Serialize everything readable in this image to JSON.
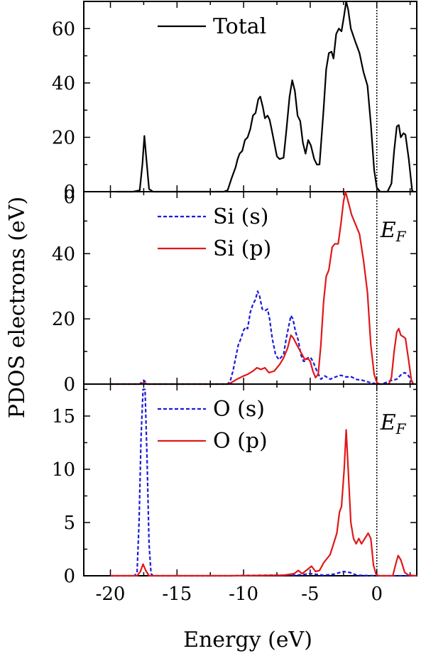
{
  "figure": {
    "ylabel": "PDOS electrons (eV)",
    "xlabel": "Energy (eV)",
    "fermi_label": "E",
    "fermi_sub": "F"
  },
  "chart_data": [
    {
      "type": "line",
      "panel": "top",
      "xlim": [
        -22,
        3
      ],
      "ylim": [
        0,
        70
      ],
      "xticks": [
        -20,
        -15,
        -10,
        -5,
        0
      ],
      "yticks": [
        0,
        20,
        40,
        60
      ],
      "yticklabels": [
        "0",
        "20",
        "40",
        "60"
      ],
      "fermi_level": 0,
      "show_fermi_label": false,
      "legend_placement": "top-left",
      "series": [
        {
          "name": "Total",
          "color": "#000000",
          "dash": "solid",
          "points": [
            [
              -19.6,
              0
            ],
            [
              -18.3,
              0
            ],
            [
              -17.8,
              0.5
            ],
            [
              -17.6,
              10
            ],
            [
              -17.45,
              20.5
            ],
            [
              -17.3,
              12
            ],
            [
              -17.1,
              1
            ],
            [
              -16.8,
              0
            ],
            [
              -11.5,
              0
            ],
            [
              -11.2,
              0.5
            ],
            [
              -10.9,
              5
            ],
            [
              -10.6,
              9
            ],
            [
              -10.45,
              12
            ],
            [
              -10.3,
              14
            ],
            [
              -10.1,
              15
            ],
            [
              -9.9,
              19
            ],
            [
              -9.7,
              20
            ],
            [
              -9.5,
              23
            ],
            [
              -9.3,
              28
            ],
            [
              -9.1,
              29
            ],
            [
              -8.9,
              34
            ],
            [
              -8.75,
              35
            ],
            [
              -8.55,
              31
            ],
            [
              -8.4,
              27
            ],
            [
              -8.2,
              28
            ],
            [
              -8.05,
              26.5
            ],
            [
              -7.9,
              23
            ],
            [
              -7.7,
              18
            ],
            [
              -7.5,
              13
            ],
            [
              -7.3,
              12
            ],
            [
              -7.0,
              12.5
            ],
            [
              -6.8,
              22
            ],
            [
              -6.55,
              35
            ],
            [
              -6.35,
              41
            ],
            [
              -6.15,
              37
            ],
            [
              -5.95,
              28
            ],
            [
              -5.75,
              26
            ],
            [
              -5.55,
              18
            ],
            [
              -5.35,
              14
            ],
            [
              -5.15,
              19
            ],
            [
              -4.95,
              17
            ],
            [
              -4.7,
              12
            ],
            [
              -4.5,
              10
            ],
            [
              -4.3,
              10
            ],
            [
              -4.0,
              30
            ],
            [
              -3.8,
              45
            ],
            [
              -3.6,
              51
            ],
            [
              -3.4,
              51.5
            ],
            [
              -3.25,
              49
            ],
            [
              -3.05,
              58
            ],
            [
              -2.85,
              60
            ],
            [
              -2.65,
              59
            ],
            [
              -2.45,
              65
            ],
            [
              -2.3,
              70
            ],
            [
              -2.15,
              67
            ],
            [
              -1.95,
              60
            ],
            [
              -1.6,
              55
            ],
            [
              -1.3,
              51
            ],
            [
              -1.0,
              44
            ],
            [
              -0.7,
              39
            ],
            [
              -0.45,
              25
            ],
            [
              -0.2,
              8
            ],
            [
              0.0,
              1.5
            ],
            [
              0.25,
              0
            ],
            [
              0.8,
              0
            ],
            [
              1.1,
              3
            ],
            [
              1.3,
              15
            ],
            [
              1.5,
              24
            ],
            [
              1.65,
              24.5
            ],
            [
              1.8,
              20
            ],
            [
              2.0,
              21.5
            ],
            [
              2.15,
              21
            ],
            [
              2.4,
              12
            ],
            [
              2.65,
              0.5
            ],
            [
              2.75,
              0
            ]
          ]
        }
      ]
    },
    {
      "type": "line",
      "panel": "middle",
      "xlim": [
        -22,
        3
      ],
      "ylim": [
        0,
        59
      ],
      "xticks": [
        -20,
        -15,
        -10,
        -5,
        0
      ],
      "yticks": [
        0,
        20,
        40
      ],
      "yticklabels": [
        "0",
        "20",
        "40"
      ],
      "extra_tick_label": {
        "y": 59,
        "text": "0"
      },
      "fermi_level": 0,
      "show_fermi_label": true,
      "legend_placement": "top-left",
      "series": [
        {
          "name": "Si (s)",
          "color": "#1a1adc",
          "dash": "dashed",
          "points": [
            [
              -20,
              0
            ],
            [
              -17.8,
              0
            ],
            [
              -17.5,
              1.2
            ],
            [
              -17.2,
              0
            ],
            [
              -11.2,
              0
            ],
            [
              -11.0,
              1
            ],
            [
              -10.8,
              4
            ],
            [
              -10.6,
              8
            ],
            [
              -10.4,
              12
            ],
            [
              -10.2,
              14
            ],
            [
              -10.0,
              16.5
            ],
            [
              -9.85,
              17.5
            ],
            [
              -9.7,
              17
            ],
            [
              -9.5,
              22
            ],
            [
              -9.3,
              24.5
            ],
            [
              -9.1,
              26
            ],
            [
              -8.95,
              28.5
            ],
            [
              -8.8,
              27
            ],
            [
              -8.6,
              23
            ],
            [
              -8.4,
              22.5
            ],
            [
              -8.2,
              23
            ],
            [
              -8.05,
              20
            ],
            [
              -7.85,
              14
            ],
            [
              -7.6,
              9
            ],
            [
              -7.35,
              7.5
            ],
            [
              -7.0,
              9
            ],
            [
              -6.8,
              14
            ],
            [
              -6.6,
              18
            ],
            [
              -6.45,
              21
            ],
            [
              -6.3,
              20
            ],
            [
              -6.1,
              16
            ],
            [
              -5.9,
              13.5
            ],
            [
              -5.7,
              9
            ],
            [
              -5.5,
              7
            ],
            [
              -5.35,
              7
            ],
            [
              -5.2,
              8
            ],
            [
              -5.0,
              8.3
            ],
            [
              -4.8,
              7
            ],
            [
              -4.5,
              4
            ],
            [
              -4.2,
              1.5
            ],
            [
              -3.9,
              2.5
            ],
            [
              -3.5,
              1.5
            ],
            [
              -3.1,
              2.2
            ],
            [
              -2.7,
              2.7
            ],
            [
              -2.3,
              2.2
            ],
            [
              -1.9,
              2.2
            ],
            [
              -1.5,
              1.4
            ],
            [
              -1.1,
              1.2
            ],
            [
              -0.7,
              0.7
            ],
            [
              -0.3,
              0.3
            ],
            [
              0.0,
              0
            ],
            [
              0.4,
              0
            ],
            [
              0.7,
              0.5
            ],
            [
              1.0,
              1
            ],
            [
              1.5,
              1.5
            ],
            [
              1.9,
              3.2
            ],
            [
              2.1,
              3.5
            ],
            [
              2.3,
              3
            ],
            [
              2.55,
              1.5
            ],
            [
              2.75,
              0
            ]
          ]
        },
        {
          "name": "Si (p)",
          "color": "#e01818",
          "dash": "solid",
          "points": [
            [
              -20,
              0
            ],
            [
              -17.8,
              0
            ],
            [
              -17.5,
              0.3
            ],
            [
              -17.2,
              0
            ],
            [
              -11.2,
              0
            ],
            [
              -10.9,
              0.5
            ],
            [
              -10.5,
              1.5
            ],
            [
              -10.0,
              2.5
            ],
            [
              -9.7,
              3
            ],
            [
              -9.3,
              4
            ],
            [
              -9.0,
              5
            ],
            [
              -8.7,
              4.5
            ],
            [
              -8.4,
              5
            ],
            [
              -8.1,
              3.5
            ],
            [
              -7.7,
              4
            ],
            [
              -7.3,
              6
            ],
            [
              -7.0,
              8
            ],
            [
              -6.7,
              11
            ],
            [
              -6.45,
              15
            ],
            [
              -6.25,
              14
            ],
            [
              -6.0,
              12
            ],
            [
              -5.8,
              10.5
            ],
            [
              -5.6,
              9
            ],
            [
              -5.4,
              7.5
            ],
            [
              -5.2,
              8
            ],
            [
              -5.0,
              7
            ],
            [
              -4.8,
              4
            ],
            [
              -4.6,
              2
            ],
            [
              -4.4,
              3
            ],
            [
              -4.2,
              12
            ],
            [
              -4.0,
              25
            ],
            [
              -3.8,
              33
            ],
            [
              -3.6,
              35
            ],
            [
              -3.35,
              42
            ],
            [
              -3.15,
              43
            ],
            [
              -2.9,
              43
            ],
            [
              -2.7,
              49
            ],
            [
              -2.5,
              56
            ],
            [
              -2.35,
              59
            ],
            [
              -2.15,
              56
            ],
            [
              -1.9,
              52
            ],
            [
              -1.6,
              49
            ],
            [
              -1.3,
              46
            ],
            [
              -1.0,
              38
            ],
            [
              -0.7,
              28
            ],
            [
              -0.45,
              12
            ],
            [
              -0.2,
              3
            ],
            [
              0.0,
              0.5
            ],
            [
              0.2,
              0
            ],
            [
              0.9,
              0
            ],
            [
              1.1,
              2
            ],
            [
              1.3,
              10
            ],
            [
              1.5,
              16
            ],
            [
              1.65,
              17
            ],
            [
              1.8,
              15
            ],
            [
              2.0,
              14.5
            ],
            [
              2.15,
              14
            ],
            [
              2.4,
              7
            ],
            [
              2.6,
              1
            ],
            [
              2.75,
              0
            ]
          ]
        }
      ]
    },
    {
      "type": "line",
      "panel": "bottom",
      "xlim": [
        -22,
        3
      ],
      "ylim": [
        0,
        18
      ],
      "xticks": [
        -20,
        -15,
        -10,
        -5,
        0
      ],
      "xticklabels": [
        "-20",
        "-15",
        "-10",
        "-5",
        "0"
      ],
      "yticks": [
        0,
        5,
        10,
        15
      ],
      "yticklabels": [
        "0",
        "5",
        "10",
        "15"
      ],
      "fermi_level": 0,
      "show_fermi_label": true,
      "legend_placement": "top-left",
      "series": [
        {
          "name": "O (s)",
          "color": "#1a1adc",
          "dash": "dashed",
          "points": [
            [
              -20,
              0
            ],
            [
              -18.2,
              0
            ],
            [
              -18.0,
              0.3
            ],
            [
              -17.85,
              5
            ],
            [
              -17.7,
              13
            ],
            [
              -17.55,
              17.5
            ],
            [
              -17.4,
              17.5
            ],
            [
              -17.25,
              11
            ],
            [
              -17.1,
              3
            ],
            [
              -16.95,
              0.2
            ],
            [
              -16.8,
              0
            ],
            [
              -11,
              0
            ],
            [
              -10,
              0.03
            ],
            [
              -8,
              0.05
            ],
            [
              -6,
              0.05
            ],
            [
              -5,
              0.2
            ],
            [
              -4,
              0.05
            ],
            [
              -3.2,
              0.15
            ],
            [
              -2.5,
              0.4
            ],
            [
              -2,
              0.3
            ],
            [
              -1.5,
              0.05
            ],
            [
              0,
              0
            ],
            [
              3,
              0
            ]
          ]
        },
        {
          "name": "O (p)",
          "color": "#e01818",
          "dash": "solid",
          "points": [
            [
              -20,
              0
            ],
            [
              -18.0,
              0
            ],
            [
              -17.75,
              0.4
            ],
            [
              -17.55,
              1.1
            ],
            [
              -17.35,
              0.5
            ],
            [
              -17.1,
              0
            ],
            [
              -11,
              0
            ],
            [
              -7,
              0.05
            ],
            [
              -6.2,
              0.2
            ],
            [
              -5.9,
              0.5
            ],
            [
              -5.6,
              0.2
            ],
            [
              -5.2,
              0.6
            ],
            [
              -4.9,
              0.9
            ],
            [
              -4.6,
              0.4
            ],
            [
              -4.3,
              0.5
            ],
            [
              -4.0,
              1.2
            ],
            [
              -3.5,
              2
            ],
            [
              -3.0,
              4
            ],
            [
              -2.8,
              6
            ],
            [
              -2.65,
              6.5
            ],
            [
              -2.45,
              10
            ],
            [
              -2.3,
              13.7
            ],
            [
              -2.15,
              10
            ],
            [
              -1.95,
              5
            ],
            [
              -1.75,
              3.5
            ],
            [
              -1.55,
              3
            ],
            [
              -1.35,
              3.5
            ],
            [
              -1.15,
              3
            ],
            [
              -0.9,
              3.5
            ],
            [
              -0.65,
              4
            ],
            [
              -0.45,
              3.5
            ],
            [
              -0.25,
              1
            ],
            [
              -0.05,
              0.1
            ],
            [
              0.2,
              0
            ],
            [
              1.2,
              0
            ],
            [
              1.4,
              1
            ],
            [
              1.6,
              1.9
            ],
            [
              1.8,
              1.5
            ],
            [
              2.1,
              0.3
            ],
            [
              2.4,
              0.05
            ],
            [
              3,
              0
            ]
          ]
        }
      ]
    }
  ]
}
